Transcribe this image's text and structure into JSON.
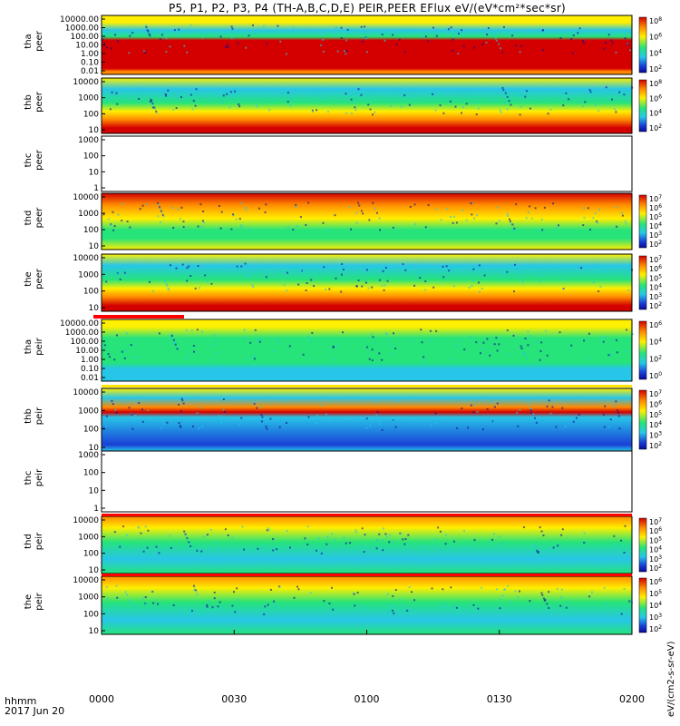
{
  "chart_data": {
    "type": "heatmap",
    "title": "P5, P1, P2, P3, P4 (TH-A,B,C,D,E) PEIR,PEER EFlux eV/(eV*cm²*sec*sr)",
    "x_axis": {
      "label_line1": "hhmm",
      "label_line2": "2017 Jun 20",
      "ticks": [
        "0000",
        "0030",
        "0100",
        "0130",
        "0200"
      ]
    },
    "colorbar_units": "eV/(cm2-s-sr-eV)",
    "panels": [
      {
        "probe": "tha",
        "species": "peer",
        "ylabels": [
          "10000.00",
          "1000.00",
          "100.00",
          "10.00",
          "1.00",
          "0.10",
          "0.01"
        ],
        "cbar_exps": [
          "8",
          "6",
          "4",
          "2"
        ],
        "has_data": true
      },
      {
        "probe": "thb",
        "species": "peer",
        "ylabels": [
          "10000",
          "1000",
          "100",
          "10"
        ],
        "cbar_exps": [
          "8",
          "6",
          "4",
          "2"
        ],
        "has_data": true
      },
      {
        "probe": "thc",
        "species": "peer",
        "ylabels": [
          "1000",
          "100",
          "10",
          "1"
        ],
        "cbar_exps": [],
        "has_data": false
      },
      {
        "probe": "thd",
        "species": "peer",
        "ylabels": [
          "10000",
          "1000",
          "100",
          "10"
        ],
        "cbar_exps": [
          "7",
          "6",
          "5",
          "4",
          "3",
          "2"
        ],
        "has_data": true
      },
      {
        "probe": "the",
        "species": "peer",
        "ylabels": [
          "10000",
          "1000",
          "100",
          "10"
        ],
        "cbar_exps": [
          "7",
          "6",
          "5",
          "4",
          "3",
          "2"
        ],
        "has_data": true
      },
      {
        "probe": "tha",
        "species": "peir",
        "ylabels": [
          "10000.00",
          "1000.00",
          "100.00",
          "10.00",
          "1.00",
          "0.10",
          "0.01"
        ],
        "cbar_exps": [
          "6",
          "4",
          "2",
          "0"
        ],
        "has_data": true
      },
      {
        "probe": "thb",
        "species": "peir",
        "ylabels": [
          "10000",
          "1000",
          "100",
          "10"
        ],
        "cbar_exps": [
          "7",
          "6",
          "5",
          "4",
          "3",
          "2"
        ],
        "has_data": true
      },
      {
        "probe": "thc",
        "species": "peir",
        "ylabels": [
          "1000",
          "100",
          "10",
          "1"
        ],
        "cbar_exps": [],
        "has_data": false
      },
      {
        "probe": "thd",
        "species": "peir",
        "ylabels": [
          "10000",
          "1000",
          "100",
          "10"
        ],
        "cbar_exps": [
          "7",
          "6",
          "5",
          "4",
          "3",
          "2"
        ],
        "has_data": true
      },
      {
        "probe": "the",
        "species": "peir",
        "ylabels": [
          "10000",
          "1000",
          "100",
          "10"
        ],
        "cbar_exps": [
          "6",
          "5",
          "4",
          "3",
          "2"
        ],
        "has_data": true
      }
    ],
    "colors": {
      "high": "#d40000",
      "orange": "#ff8a00",
      "yellow": "#ffef00",
      "green": "#26e37a",
      "cyan": "#27c6e8",
      "blue": "#1a3fd8",
      "navy": "#0a0a9a",
      "fill_line": "#ff0000",
      "marker": "#ffe600"
    }
  }
}
